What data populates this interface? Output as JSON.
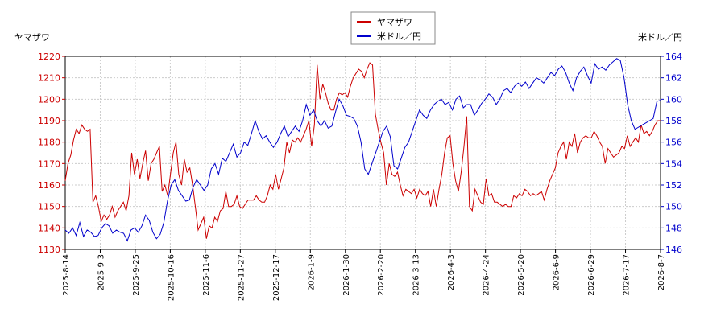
{
  "chart_data": {
    "type": "line",
    "left_axis_label": "ヤマザワ",
    "right_axis_label": "米ドル／円",
    "legend_position": "top-center",
    "grid": true,
    "left_ylim": [
      1130,
      1220
    ],
    "right_ylim": [
      146,
      164
    ],
    "left_ticks": [
      1130,
      1140,
      1150,
      1160,
      1170,
      1180,
      1190,
      1200,
      1210,
      1220
    ],
    "right_ticks": [
      146,
      148,
      150,
      152,
      154,
      156,
      158,
      160,
      162,
      164
    ],
    "x_tick_labels": [
      "2025-8-14",
      "2025-9-3",
      "2025-9-25",
      "2025-10-16",
      "2025-11-6",
      "2025-11-27",
      "2025-12-17",
      "2026-1-9",
      "2026-1-30",
      "2026-2-20",
      "2026-3-13",
      "2026-4-3",
      "2026-4-24",
      "2026-5-20",
      "2026-6-9",
      "2026-6-29",
      "2026-7-17",
      "2026-8-7"
    ],
    "series": [
      {
        "name": "ヤマザワ",
        "axis": "left",
        "color": "#cc0000",
        "values": [
          1162,
          1170,
          1174,
          1181,
          1186,
          1184,
          1188,
          1186,
          1185,
          1186,
          1152,
          1155,
          1150,
          1143,
          1146,
          1144,
          1146,
          1150,
          1145,
          1148,
          1150,
          1152,
          1148,
          1155,
          1175,
          1165,
          1172,
          1163,
          1170,
          1176,
          1162,
          1170,
          1172,
          1175,
          1178,
          1157,
          1160,
          1155,
          1165,
          1175,
          1180,
          1165,
          1160,
          1172,
          1166,
          1168,
          1160,
          1150,
          1139,
          1142,
          1145,
          1135,
          1141,
          1140,
          1145,
          1143,
          1148,
          1149,
          1157,
          1150,
          1150,
          1151,
          1155,
          1150,
          1149,
          1151,
          1153,
          1153,
          1153,
          1155,
          1153,
          1152,
          1152,
          1155,
          1160,
          1158,
          1165,
          1158,
          1163,
          1168,
          1180,
          1175,
          1181,
          1180,
          1182,
          1180,
          1183,
          1186,
          1190,
          1178,
          1188,
          1216,
          1200,
          1207,
          1203,
          1198,
          1195,
          1195,
          1200,
          1203,
          1202,
          1203,
          1201,
          1206,
          1210,
          1212,
          1214,
          1213,
          1210,
          1214,
          1217,
          1216,
          1193,
          1186,
          1180,
          1175,
          1160,
          1170,
          1165,
          1164,
          1166,
          1160,
          1155,
          1158,
          1157,
          1156,
          1158,
          1154,
          1158,
          1156,
          1155,
          1157,
          1150,
          1158,
          1150,
          1158,
          1165,
          1175,
          1182,
          1183,
          1170,
          1162,
          1157,
          1166,
          1178,
          1192,
          1150,
          1148,
          1158,
          1155,
          1152,
          1151,
          1163,
          1155,
          1156,
          1152,
          1152,
          1151,
          1150,
          1151,
          1150,
          1150,
          1155,
          1154,
          1156,
          1155,
          1158,
          1157,
          1155,
          1156,
          1155,
          1156,
          1157,
          1153,
          1158,
          1162,
          1165,
          1168,
          1175,
          1178,
          1180,
          1172,
          1180,
          1178,
          1184,
          1175,
          1180,
          1182,
          1183,
          1182,
          1182,
          1185,
          1183,
          1180,
          1178,
          1170,
          1177,
          1175,
          1173,
          1174,
          1175,
          1178,
          1177,
          1183,
          1178,
          1180,
          1182,
          1180,
          1188,
          1184,
          1185,
          1183,
          1185,
          1188,
          1190,
          1190
        ]
      },
      {
        "name": "米ドル／円",
        "axis": "right",
        "color": "#0000cc",
        "values": [
          147.8,
          147.5,
          148.0,
          147.3,
          148.5,
          147.2,
          147.8,
          147.6,
          147.2,
          147.3,
          148.0,
          148.4,
          148.2,
          147.5,
          147.8,
          147.6,
          147.5,
          146.8,
          147.8,
          148.0,
          147.6,
          148.2,
          149.2,
          148.7,
          147.6,
          147.0,
          147.4,
          148.5,
          150.5,
          152.0,
          152.5,
          151.5,
          151.0,
          150.5,
          150.6,
          151.8,
          152.5,
          152.0,
          151.5,
          152.0,
          153.5,
          154.0,
          153.0,
          154.5,
          154.2,
          155.0,
          155.8,
          154.6,
          155.0,
          156.0,
          155.7,
          156.8,
          158.0,
          157.0,
          156.3,
          156.6,
          156.0,
          155.5,
          156.0,
          156.8,
          157.5,
          156.5,
          157.0,
          157.5,
          157.0,
          158.0,
          159.5,
          158.5,
          159.0,
          158.0,
          157.5,
          158.0,
          157.3,
          157.5,
          158.8,
          160.0,
          159.4,
          158.5,
          158.4,
          158.2,
          157.5,
          156.0,
          153.5,
          153.0,
          154.0,
          155.0,
          156.0,
          157.0,
          157.5,
          156.5,
          153.8,
          153.5,
          154.5,
          155.5,
          156.0,
          157.0,
          158.0,
          159.0,
          158.5,
          158.2,
          159.0,
          159.5,
          159.8,
          160.0,
          159.5,
          159.7,
          159.0,
          160.0,
          160.3,
          159.2,
          159.5,
          159.5,
          158.5,
          159.0,
          159.6,
          160.0,
          160.5,
          160.2,
          159.5,
          160.0,
          160.8,
          161.0,
          160.6,
          161.2,
          161.5,
          161.2,
          161.6,
          161.0,
          161.5,
          162.0,
          161.8,
          161.5,
          162.0,
          162.5,
          162.2,
          162.8,
          163.1,
          162.5,
          161.5,
          160.8,
          162.0,
          162.6,
          163.0,
          162.2,
          161.5,
          163.3,
          162.8,
          163.0,
          162.7,
          163.2,
          163.5,
          163.8,
          163.6,
          162.0,
          159.5,
          158.0,
          157.2,
          157.4,
          157.6,
          157.8,
          158.0,
          158.2,
          159.8,
          159.9
        ]
      }
    ]
  }
}
